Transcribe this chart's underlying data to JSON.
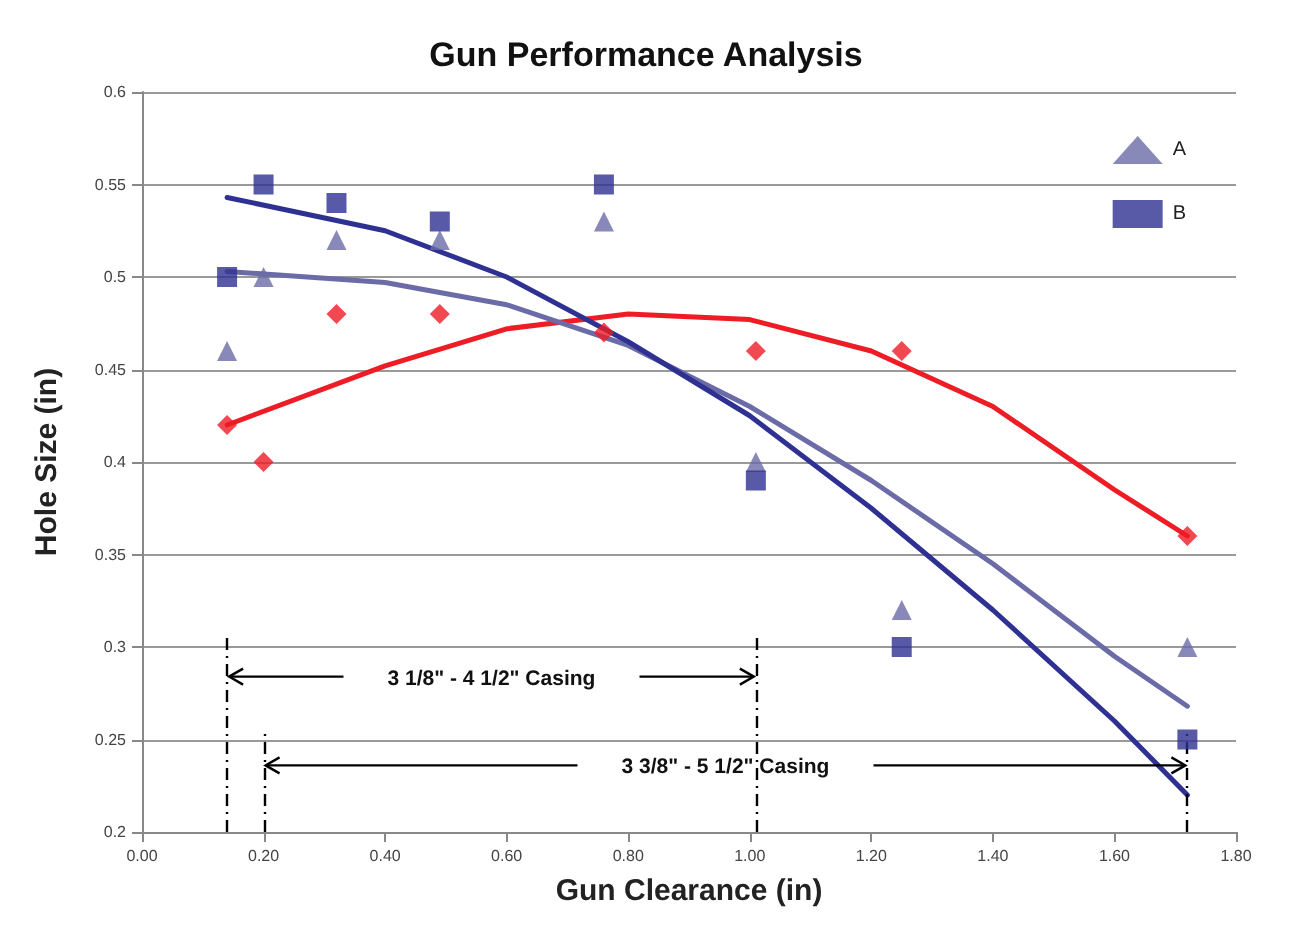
{
  "chart_data": {
    "type": "scatter",
    "title": "Gun Performance Analysis",
    "xlabel": "Gun Clearance (in)",
    "ylabel": "Hole Size (in)",
    "x": [
      0.14,
      0.2,
      0.32,
      0.49,
      0.76,
      1.01,
      1.25,
      1.72
    ],
    "series": [
      {
        "color": "#ee1c25",
        "marker": "diamond",
        "values": [
          0.42,
          0.4,
          0.48,
          0.48,
          0.47,
          0.46,
          0.46,
          0.36
        ]
      },
      {
        "name": "A",
        "color": "#6b6ba8",
        "marker": "triangle",
        "values": [
          0.46,
          0.5,
          0.52,
          0.52,
          0.53,
          0.4,
          0.32,
          0.3
        ]
      },
      {
        "name": "B",
        "color": "#2e3192",
        "marker": "square",
        "values": [
          0.5,
          0.55,
          0.54,
          0.53,
          0.55,
          0.39,
          0.3,
          0.25
        ]
      },
      {
        "type": "line",
        "color": "#ee1c25",
        "marker": "none",
        "x": [
          0.14,
          0.4,
          0.6,
          0.8,
          1.0,
          1.2,
          1.4,
          1.6,
          1.72
        ],
        "values": [
          0.42,
          0.452,
          0.472,
          0.48,
          0.477,
          0.46,
          0.43,
          0.385,
          0.36
        ]
      },
      {
        "type": "line",
        "color": "#6b6ba8",
        "marker": "none",
        "x": [
          0.14,
          0.4,
          0.6,
          0.8,
          1.0,
          1.2,
          1.4,
          1.6,
          1.72
        ],
        "values": [
          0.503,
          0.497,
          0.485,
          0.463,
          0.43,
          0.39,
          0.345,
          0.295,
          0.268
        ]
      },
      {
        "type": "line",
        "color": "#2e3192",
        "marker": "none",
        "x": [
          0.14,
          0.4,
          0.6,
          0.8,
          1.0,
          1.2,
          1.4,
          1.6,
          1.72
        ],
        "values": [
          0.543,
          0.525,
          0.5,
          0.465,
          0.425,
          0.375,
          0.32,
          0.26,
          0.22
        ]
      }
    ],
    "ref_lines": [
      {
        "axis": "x",
        "value": 0.14,
        "color": "#000000",
        "line_style": "dashed"
      },
      {
        "axis": "x",
        "value": 0.2,
        "color": "#000000",
        "line_style": "dashed"
      },
      {
        "axis": "x",
        "value": 1.01,
        "color": "#000000",
        "line_style": "dashed"
      },
      {
        "axis": "x",
        "value": 1.72,
        "color": "#000000",
        "line_style": "dashed"
      }
    ],
    "annotations": [
      "3 1/8\" - 4 1/2\" Casing",
      "3 3/8\" - 5 1/2\" Casing"
    ],
    "xlim": [
      0,
      1.8
    ],
    "xticks": [
      {
        "value": 0,
        "label": "0.00"
      },
      {
        "value": 0.2,
        "label": "0.20"
      },
      {
        "value": 0.4,
        "label": "0.40"
      },
      {
        "value": 0.6,
        "label": "0.60"
      },
      {
        "value": 0.8,
        "label": "0.80"
      },
      {
        "value": 1,
        "label": "1.00"
      },
      {
        "value": 1.2,
        "label": "1.20"
      },
      {
        "value": 1.4,
        "label": "1.40"
      },
      {
        "value": 1.6,
        "label": "1.60"
      },
      {
        "value": 1.8,
        "label": "1.80"
      }
    ],
    "ylim": [
      0.2,
      0.6
    ],
    "yticks": [
      0.2,
      0.25,
      0.3,
      0.35,
      0.4,
      0.45,
      0.5,
      0.55,
      0.6
    ],
    "grid": "y",
    "legend": "top right"
  }
}
